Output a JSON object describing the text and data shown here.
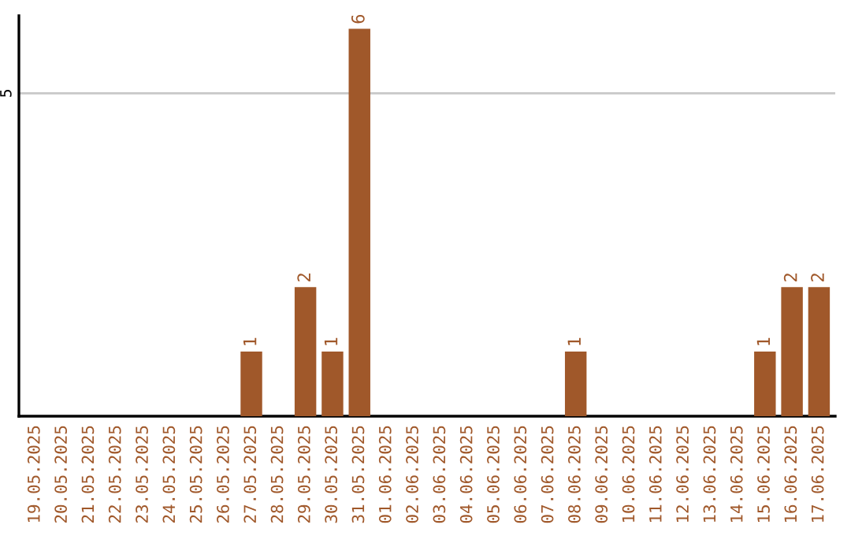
{
  "chart_data": {
    "type": "bar",
    "categories": [
      "19.05.2025",
      "20.05.2025",
      "21.05.2025",
      "22.05.2025",
      "23.05.2025",
      "24.05.2025",
      "25.05.2025",
      "26.05.2025",
      "27.05.2025",
      "28.05.2025",
      "29.05.2025",
      "30.05.2025",
      "31.05.2025",
      "01.06.2025",
      "02.06.2025",
      "03.06.2025",
      "04.06.2025",
      "05.06.2025",
      "06.06.2025",
      "07.06.2025",
      "08.06.2025",
      "09.06.2025",
      "10.06.2025",
      "11.06.2025",
      "12.06.2025",
      "13.06.2025",
      "14.06.2025",
      "15.06.2025",
      "16.06.2025",
      "17.06.2025"
    ],
    "values": [
      0,
      0,
      0,
      0,
      0,
      0,
      0,
      0,
      1,
      0,
      2,
      1,
      6,
      0,
      0,
      0,
      0,
      0,
      0,
      0,
      1,
      0,
      0,
      0,
      0,
      0,
      0,
      1,
      2,
      2
    ],
    "value_labels": [
      null,
      null,
      null,
      null,
      null,
      null,
      null,
      null,
      "1",
      null,
      "2",
      "1",
      "6",
      null,
      null,
      null,
      null,
      null,
      null,
      null,
      "1",
      null,
      null,
      null,
      null,
      null,
      null,
      "1",
      "2",
      "2"
    ],
    "color": "#a0582a",
    "ylim": [
      0,
      6.2
    ],
    "yticks": [
      5
    ],
    "grid": "y"
  }
}
